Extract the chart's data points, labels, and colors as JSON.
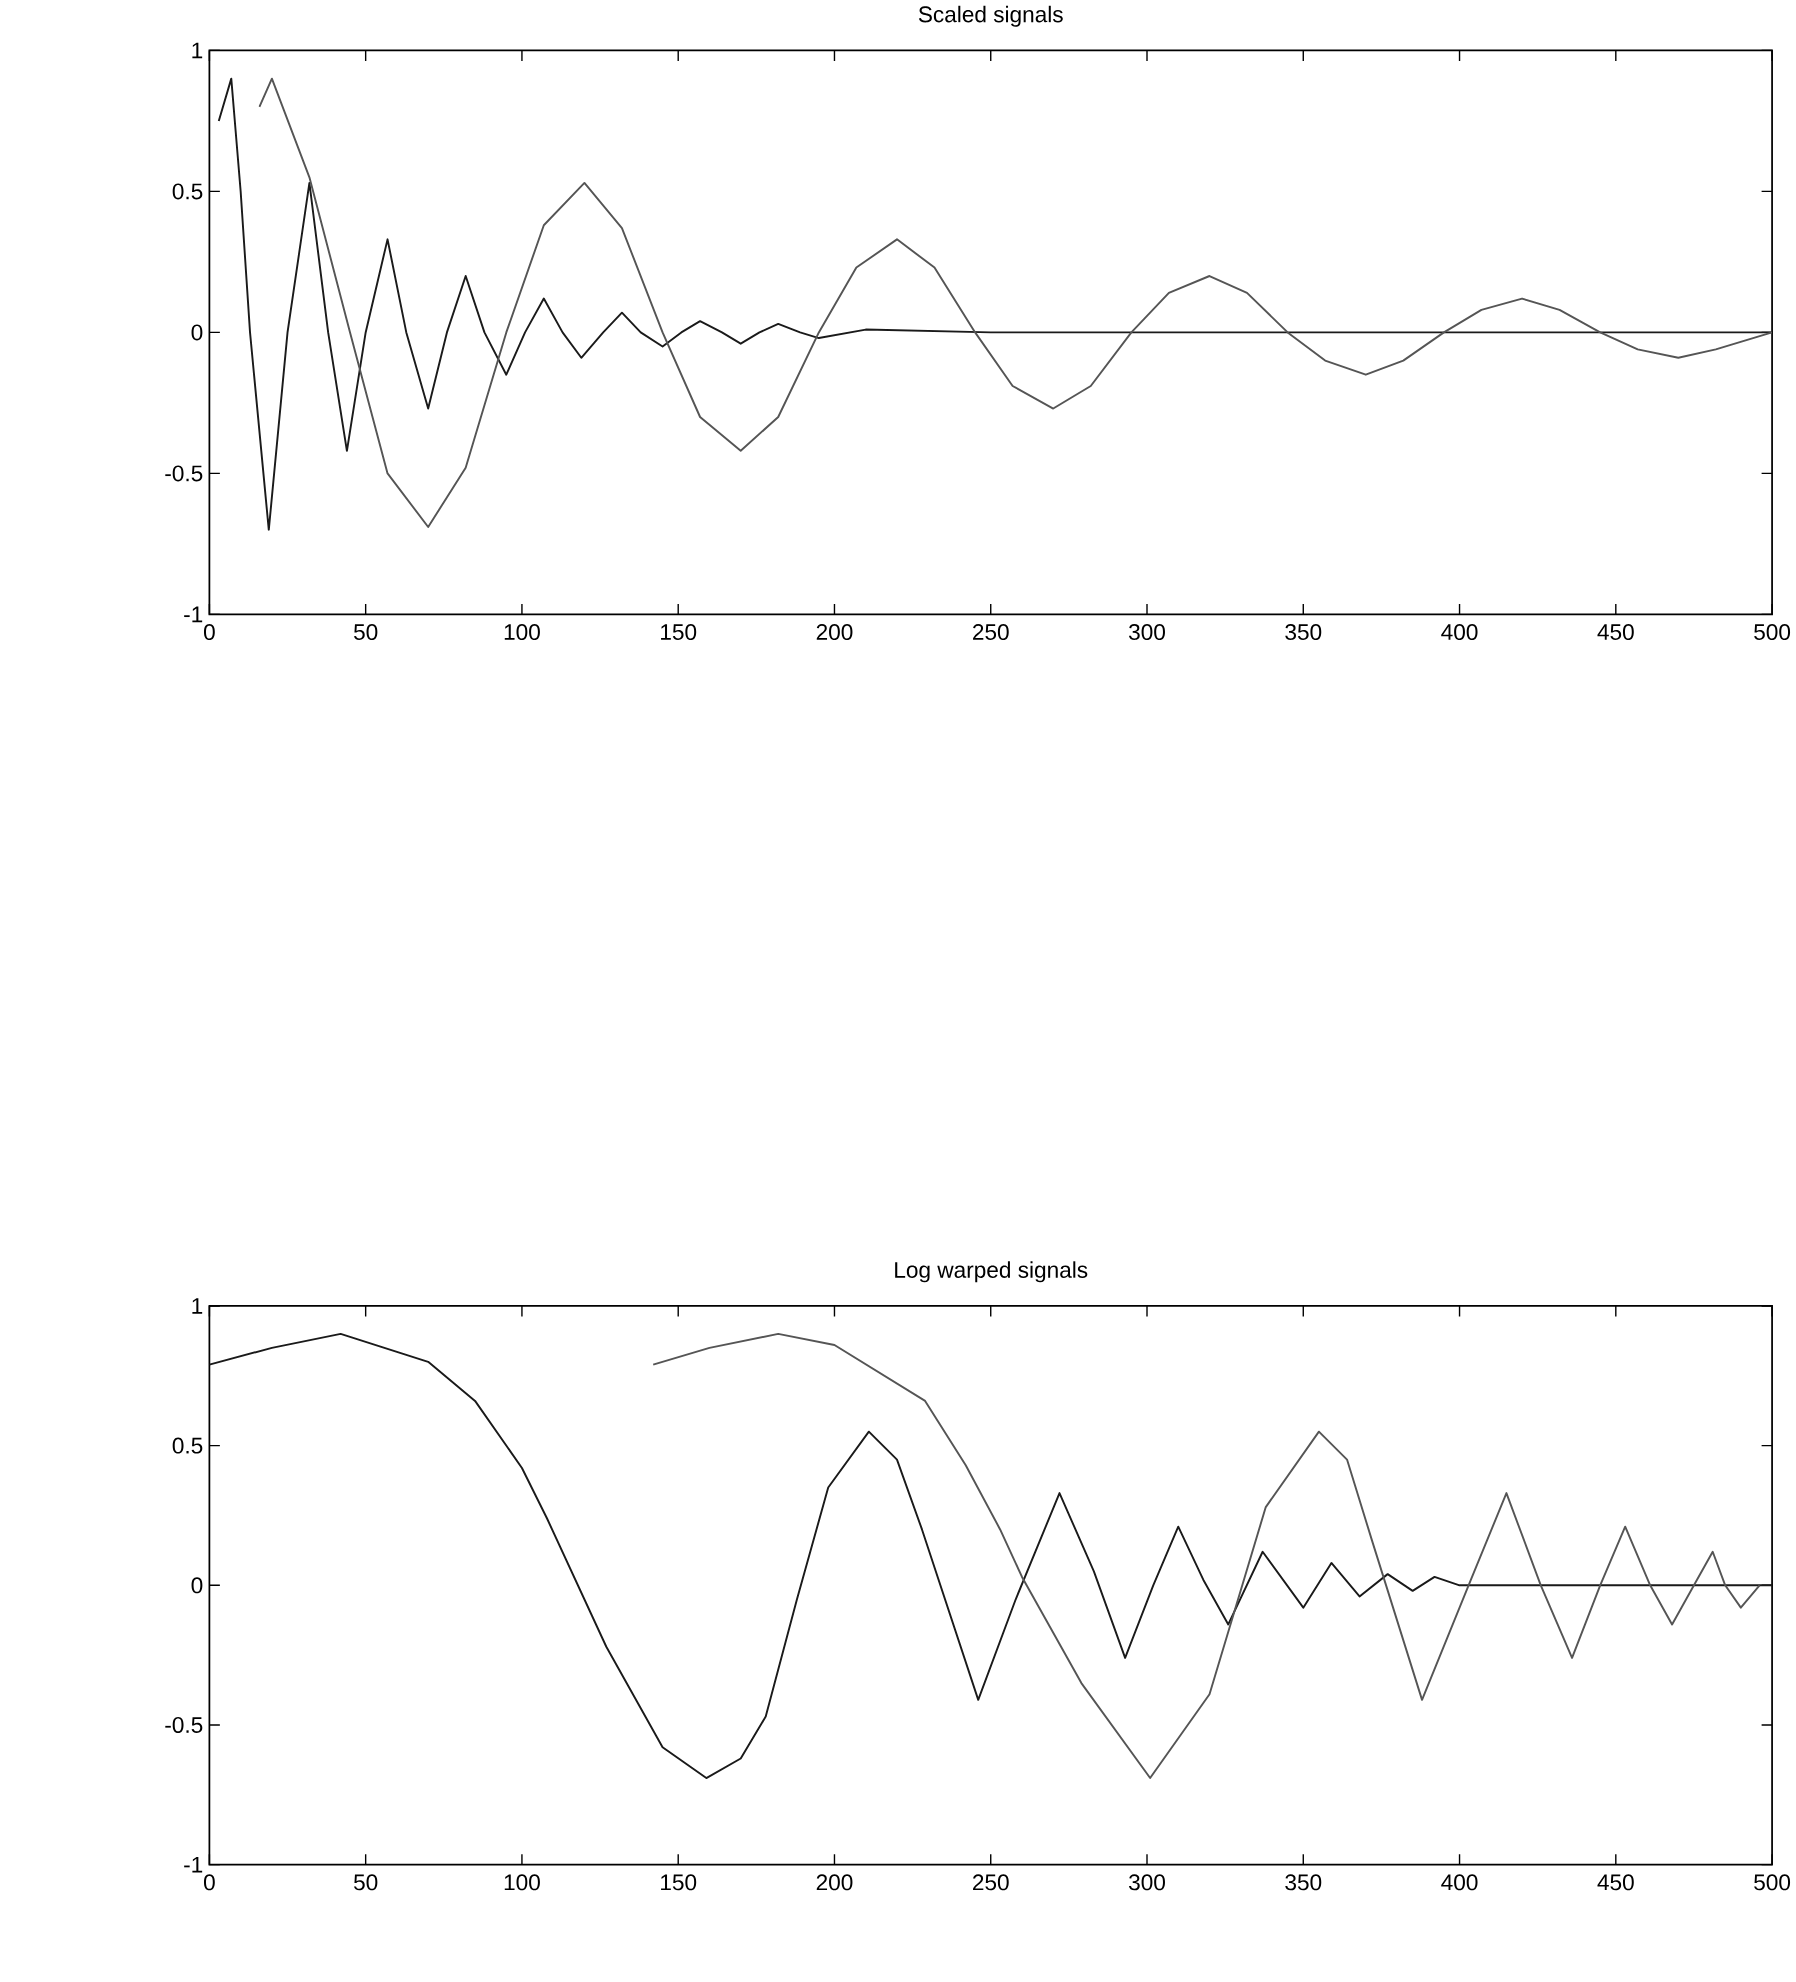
{
  "chart_data": [
    {
      "type": "line",
      "title": "Scaled signals",
      "xlim": [
        0,
        500
      ],
      "ylim": [
        -1,
        1
      ],
      "xticks": [
        0,
        50,
        100,
        150,
        200,
        250,
        300,
        350,
        400,
        450,
        500
      ],
      "yticks": [
        -1,
        -0.5,
        0,
        0.5,
        1
      ],
      "series": [
        {
          "color": "#1a1a1a",
          "x": [
            3,
            7,
            10,
            13,
            19,
            25,
            32,
            38,
            44,
            50,
            57,
            63,
            70,
            76,
            82,
            88,
            95,
            101,
            107,
            113,
            119,
            126,
            132,
            138,
            145,
            151,
            157,
            164,
            170,
            176,
            182,
            189,
            195,
            210,
            250,
            300,
            350,
            400,
            450,
            500
          ],
          "values": [
            0.75,
            0.9,
            0.5,
            0,
            -0.7,
            0,
            0.53,
            0,
            -0.42,
            0,
            0.33,
            0,
            -0.27,
            0,
            0.2,
            0,
            -0.15,
            0,
            0.12,
            0,
            -0.09,
            0,
            0.07,
            0,
            -0.05,
            0,
            0.04,
            0,
            -0.04,
            0,
            0.03,
            0,
            -0.02,
            0.01,
            0,
            0,
            0,
            0,
            0,
            0
          ]
        },
        {
          "color": "#555555",
          "x": [
            16,
            20,
            32,
            45,
            57,
            70,
            82,
            95,
            107,
            120,
            132,
            145,
            157,
            170,
            182,
            195,
            207,
            220,
            232,
            245,
            257,
            270,
            282,
            295,
            307,
            320,
            332,
            345,
            357,
            370,
            382,
            395,
            407,
            420,
            432,
            445,
            457,
            470,
            482,
            500
          ],
          "values": [
            0.8,
            0.9,
            0.55,
            0,
            -0.5,
            -0.69,
            -0.48,
            0,
            0.38,
            0.53,
            0.37,
            0,
            -0.3,
            -0.42,
            -0.3,
            0,
            0.23,
            0.33,
            0.23,
            0,
            -0.19,
            -0.27,
            -0.19,
            0,
            0.14,
            0.2,
            0.14,
            0,
            -0.1,
            -0.15,
            -0.1,
            0,
            0.08,
            0.12,
            0.08,
            0,
            -0.06,
            -0.09,
            -0.06,
            0
          ]
        }
      ]
    },
    {
      "type": "line",
      "title": "Log warped signals",
      "xlim": [
        0,
        500
      ],
      "ylim": [
        -1,
        1
      ],
      "xticks": [
        0,
        50,
        100,
        150,
        200,
        250,
        300,
        350,
        400,
        450,
        500
      ],
      "yticks": [
        -1,
        -0.5,
        0,
        0.5,
        1
      ],
      "series": [
        {
          "color": "#1a1a1a",
          "x": [
            0,
            20,
            42,
            70,
            85,
            100,
            108,
            127,
            145,
            159,
            170,
            178,
            188,
            198,
            211,
            220,
            228,
            246,
            258,
            272,
            283,
            293,
            302,
            310,
            318,
            326,
            337,
            350,
            359,
            368,
            377,
            385,
            392,
            400,
            450,
            500
          ],
          "values": [
            0.79,
            0.85,
            0.9,
            0.8,
            0.66,
            0.42,
            0.24,
            -0.22,
            -0.58,
            -0.69,
            -0.62,
            -0.47,
            -0.05,
            0.35,
            0.55,
            0.45,
            0.2,
            -0.41,
            -0.05,
            0.33,
            0.05,
            -0.26,
            0,
            0.21,
            0.02,
            -0.14,
            0.12,
            -0.08,
            0.08,
            -0.04,
            0.04,
            -0.02,
            0.03,
            0,
            0,
            0
          ]
        },
        {
          "color": "#555555",
          "x": [
            142,
            160,
            182,
            200,
            229,
            242,
            253,
            260,
            279,
            301,
            320,
            338,
            355,
            364,
            372,
            388,
            404,
            415,
            426,
            436,
            445,
            453,
            461,
            468,
            475,
            481,
            485,
            490,
            496
          ],
          "values": [
            0.79,
            0.85,
            0.9,
            0.86,
            0.66,
            0.43,
            0.2,
            0.03,
            -0.35,
            -0.69,
            -0.39,
            0.28,
            0.55,
            0.45,
            0.16,
            -0.41,
            0.03,
            0.33,
            0,
            -0.26,
            0,
            0.21,
            0,
            -0.14,
            0,
            0.12,
            0,
            -0.08,
            0
          ]
        }
      ]
    }
  ]
}
